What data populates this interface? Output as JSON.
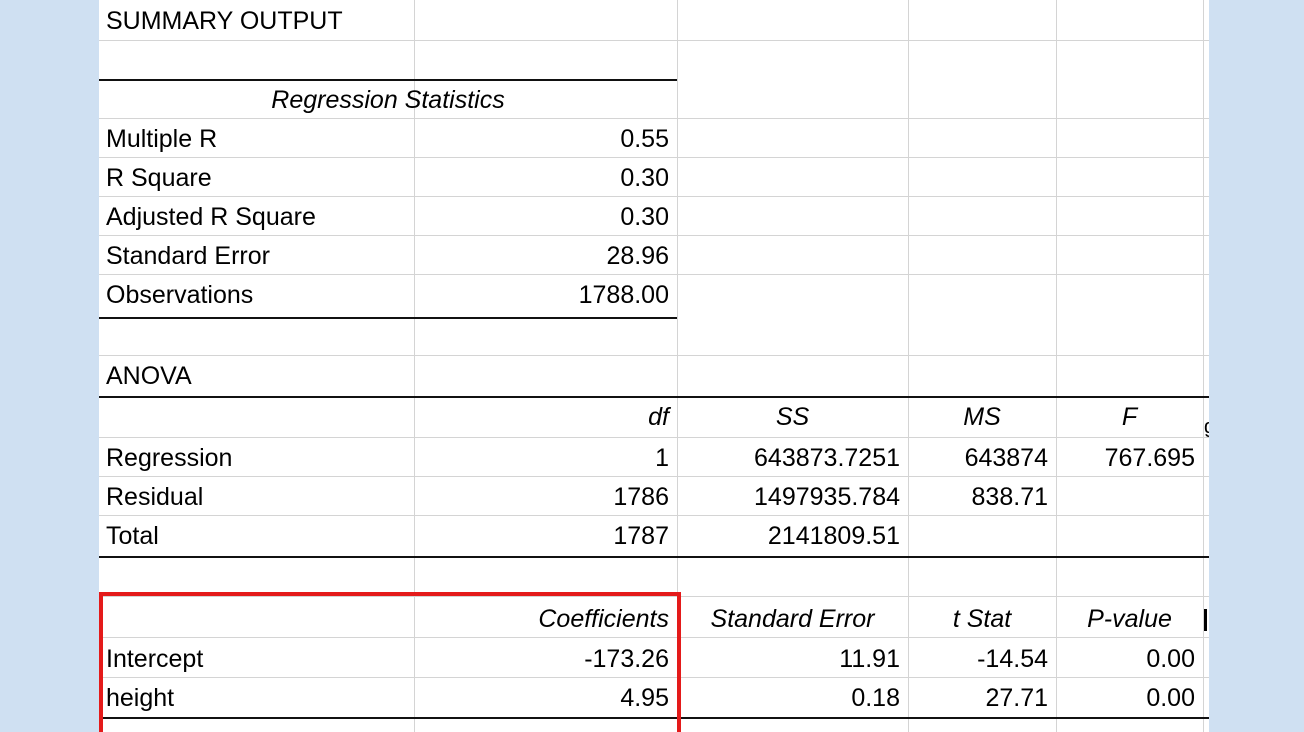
{
  "title": "SUMMARY OUTPUT",
  "regression_statistics": {
    "header": "Regression Statistics",
    "rows": [
      {
        "label": "Multiple R",
        "value": "0.55"
      },
      {
        "label": "R Square",
        "value": "0.30"
      },
      {
        "label": "Adjusted R Square",
        "value": "0.30"
      },
      {
        "label": "Standard Error",
        "value": "28.96"
      },
      {
        "label": "Observations",
        "value": "1788.00"
      }
    ]
  },
  "anova": {
    "title": "ANOVA",
    "headers": {
      "df": "df",
      "ss": "SS",
      "ms": "MS",
      "f": "F"
    },
    "rows": [
      {
        "label": "Regression",
        "df": "1",
        "ss": "643873.7251",
        "ms": "643874",
        "f": "767.695"
      },
      {
        "label": "Residual",
        "df": "1786",
        "ss": "1497935.784",
        "ms": "838.71",
        "f": ""
      },
      {
        "label": "Total",
        "df": "1787",
        "ss": "2141809.51",
        "ms": "",
        "f": ""
      }
    ]
  },
  "coefficients": {
    "headers": {
      "coefficients": "Coefficients",
      "std_error": "Standard Error",
      "t_stat": "t Stat",
      "p_value": "P-value"
    },
    "rows": [
      {
        "label": "Intercept",
        "coefficient": "-173.26",
        "std_error": "11.91",
        "t_stat": "-14.54",
        "p_value": "0.00"
      },
      {
        "label": "height",
        "coefficient": "4.95",
        "std_error": "0.18",
        "t_stat": "27.71",
        "p_value": "0.00"
      }
    ]
  },
  "colors": {
    "background": "#cfe0f2",
    "highlight_border": "#e41a1a",
    "gridline": "#d4d4d4"
  }
}
